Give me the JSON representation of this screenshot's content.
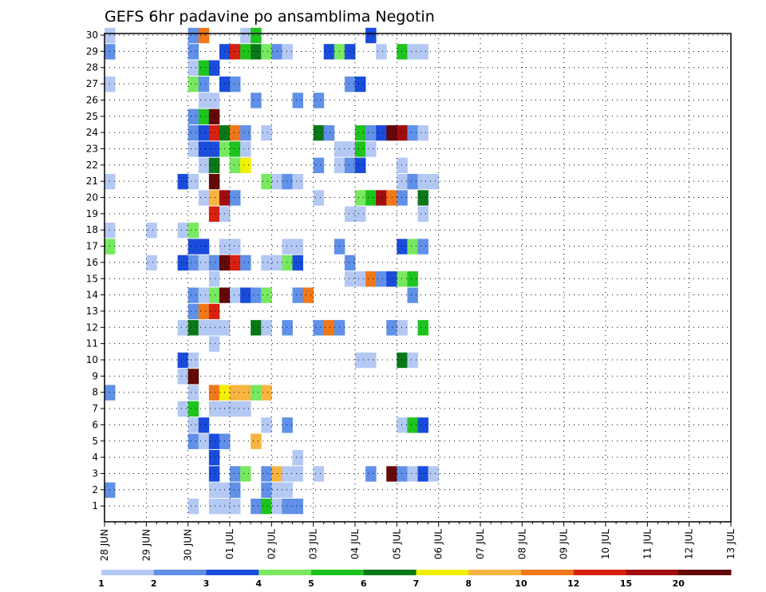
{
  "chart_data": {
    "type": "heatmap",
    "title": "GEFS 6hr padavine po ansamblima Negotin",
    "xlabel": "",
    "ylabel": "",
    "x_tick_labels": [
      "28 JUN",
      "29 JUN",
      "30 JUN",
      "01 JUL",
      "02 JUL",
      "03 JUL",
      "04 JUL",
      "05 JUL",
      "06 JUL",
      "07 JUL",
      "08 JUL",
      "09 JUL",
      "10 JUL",
      "11 JUL",
      "12 JUL",
      "13 JUL"
    ],
    "y_tick_labels": [
      "1",
      "2",
      "3",
      "4",
      "5",
      "6",
      "7",
      "8",
      "9",
      "10",
      "11",
      "12",
      "13",
      "14",
      "15",
      "16",
      "17",
      "18",
      "19",
      "20",
      "21",
      "22",
      "23",
      "24",
      "25",
      "26",
      "27",
      "28",
      "29",
      "30"
    ],
    "xlim": [
      0,
      60
    ],
    "ylim": [
      0,
      30
    ],
    "grid": true,
    "colorbar": {
      "labels": [
        "1",
        "2",
        "3",
        "4",
        "5",
        "6",
        "7",
        "8",
        "10",
        "12",
        "15",
        "20"
      ],
      "colors": [
        "#b4c8f4",
        "#6090e8",
        "#1a4cdc",
        "#78e860",
        "#1ec41e",
        "#0a7818",
        "#f0f000",
        "#f8b440",
        "#f07818",
        "#d82010",
        "#a00c10",
        "#640808"
      ]
    },
    "cells": [
      [
        0,
        30,
        0
      ],
      [
        8,
        30,
        1
      ],
      [
        9,
        30,
        8
      ],
      [
        13,
        30,
        0
      ],
      [
        14,
        30,
        4
      ],
      [
        25,
        30,
        2
      ],
      [
        0,
        29,
        1
      ],
      [
        8,
        29,
        1
      ],
      [
        11,
        29,
        2
      ],
      [
        12,
        29,
        9
      ],
      [
        13,
        29,
        4
      ],
      [
        14,
        29,
        5
      ],
      [
        15,
        29,
        3
      ],
      [
        16,
        29,
        1
      ],
      [
        17,
        29,
        0
      ],
      [
        17,
        29,
        0
      ],
      [
        21,
        29,
        2
      ],
      [
        22,
        29,
        3
      ],
      [
        23,
        29,
        2
      ],
      [
        26,
        29,
        0
      ],
      [
        28,
        29,
        4
      ],
      [
        29,
        29,
        0
      ],
      [
        30,
        29,
        0
      ],
      [
        8,
        28,
        0
      ],
      [
        9,
        28,
        4
      ],
      [
        10,
        28,
        2
      ],
      [
        0,
        27,
        0
      ],
      [
        8,
        27,
        3
      ],
      [
        9,
        27,
        1
      ],
      [
        11,
        27,
        2
      ],
      [
        12,
        27,
        1
      ],
      [
        23,
        27,
        1
      ],
      [
        24,
        27,
        2
      ],
      [
        9,
        26,
        0
      ],
      [
        10,
        26,
        0
      ],
      [
        14,
        26,
        1
      ],
      [
        18,
        26,
        1
      ],
      [
        20,
        26,
        1
      ],
      [
        8,
        25,
        1
      ],
      [
        9,
        25,
        4
      ],
      [
        10,
        25,
        11
      ],
      [
        8,
        24,
        1
      ],
      [
        9,
        24,
        2
      ],
      [
        10,
        24,
        9
      ],
      [
        11,
        24,
        5
      ],
      [
        12,
        24,
        8
      ],
      [
        13,
        24,
        1
      ],
      [
        15,
        24,
        0
      ],
      [
        20,
        24,
        5
      ],
      [
        21,
        24,
        1
      ],
      [
        24,
        24,
        4
      ],
      [
        25,
        24,
        1
      ],
      [
        26,
        24,
        2
      ],
      [
        27,
        24,
        11
      ],
      [
        28,
        24,
        10
      ],
      [
        29,
        24,
        1
      ],
      [
        30,
        24,
        0
      ],
      [
        8,
        23,
        0
      ],
      [
        9,
        23,
        2
      ],
      [
        10,
        23,
        2
      ],
      [
        11,
        23,
        3
      ],
      [
        12,
        23,
        4
      ],
      [
        13,
        23,
        0
      ],
      [
        22,
        23,
        0
      ],
      [
        23,
        23,
        0
      ],
      [
        24,
        23,
        4
      ],
      [
        25,
        23,
        0
      ],
      [
        9,
        22,
        0
      ],
      [
        10,
        22,
        5
      ],
      [
        12,
        22,
        3
      ],
      [
        13,
        22,
        6
      ],
      [
        20,
        22,
        1
      ],
      [
        22,
        22,
        0
      ],
      [
        23,
        22,
        1
      ],
      [
        24,
        22,
        2
      ],
      [
        28,
        22,
        0
      ],
      [
        0,
        21,
        0
      ],
      [
        7,
        21,
        2
      ],
      [
        8,
        21,
        0
      ],
      [
        10,
        21,
        11
      ],
      [
        15,
        21,
        3
      ],
      [
        16,
        21,
        0
      ],
      [
        17,
        21,
        1
      ],
      [
        18,
        21,
        0
      ],
      [
        28,
        21,
        0
      ],
      [
        29,
        21,
        1
      ],
      [
        30,
        21,
        0
      ],
      [
        31,
        21,
        0
      ],
      [
        9,
        20,
        0
      ],
      [
        10,
        20,
        7
      ],
      [
        11,
        20,
        10
      ],
      [
        12,
        20,
        1
      ],
      [
        20,
        20,
        0
      ],
      [
        24,
        20,
        3
      ],
      [
        25,
        20,
        4
      ],
      [
        26,
        20,
        10
      ],
      [
        27,
        20,
        8
      ],
      [
        28,
        20,
        1
      ],
      [
        30,
        20,
        5
      ],
      [
        10,
        19,
        9
      ],
      [
        11,
        19,
        0
      ],
      [
        23,
        19,
        0
      ],
      [
        24,
        19,
        0
      ],
      [
        30,
        19,
        0
      ],
      [
        0,
        18,
        0
      ],
      [
        4,
        18,
        0
      ],
      [
        7,
        18,
        0
      ],
      [
        8,
        18,
        3
      ],
      [
        0,
        17,
        3
      ],
      [
        8,
        17,
        2
      ],
      [
        9,
        17,
        2
      ],
      [
        11,
        17,
        0
      ],
      [
        12,
        17,
        0
      ],
      [
        17,
        17,
        0
      ],
      [
        18,
        17,
        0
      ],
      [
        22,
        17,
        1
      ],
      [
        28,
        17,
        2
      ],
      [
        29,
        17,
        3
      ],
      [
        30,
        17,
        1
      ],
      [
        4,
        16,
        0
      ],
      [
        7,
        16,
        2
      ],
      [
        8,
        16,
        1
      ],
      [
        9,
        16,
        0
      ],
      [
        10,
        16,
        1
      ],
      [
        11,
        16,
        11
      ],
      [
        12,
        16,
        9
      ],
      [
        13,
        16,
        1
      ],
      [
        15,
        16,
        0
      ],
      [
        16,
        16,
        0
      ],
      [
        17,
        16,
        3
      ],
      [
        18,
        16,
        2
      ],
      [
        23,
        16,
        1
      ],
      [
        10,
        15,
        0
      ],
      [
        23,
        15,
        0
      ],
      [
        24,
        15,
        0
      ],
      [
        25,
        15,
        8
      ],
      [
        26,
        15,
        1
      ],
      [
        27,
        15,
        2
      ],
      [
        28,
        15,
        3
      ],
      [
        29,
        15,
        4
      ],
      [
        8,
        14,
        1
      ],
      [
        9,
        14,
        0
      ],
      [
        10,
        14,
        3
      ],
      [
        11,
        14,
        11
      ],
      [
        12,
        14,
        0
      ],
      [
        13,
        14,
        2
      ],
      [
        14,
        14,
        1
      ],
      [
        15,
        14,
        3
      ],
      [
        18,
        14,
        1
      ],
      [
        19,
        14,
        8
      ],
      [
        29,
        14,
        1
      ],
      [
        8,
        13,
        1
      ],
      [
        9,
        13,
        8
      ],
      [
        10,
        13,
        9
      ],
      [
        7,
        12,
        0
      ],
      [
        8,
        12,
        5
      ],
      [
        9,
        12,
        0
      ],
      [
        10,
        12,
        0
      ],
      [
        11,
        12,
        0
      ],
      [
        14,
        12,
        5
      ],
      [
        15,
        12,
        0
      ],
      [
        17,
        12,
        1
      ],
      [
        20,
        12,
        1
      ],
      [
        21,
        12,
        8
      ],
      [
        22,
        12,
        1
      ],
      [
        27,
        12,
        1
      ],
      [
        28,
        12,
        0
      ],
      [
        30,
        12,
        4
      ],
      [
        10,
        11,
        0
      ],
      [
        7,
        10,
        2
      ],
      [
        8,
        10,
        0
      ],
      [
        24,
        10,
        0
      ],
      [
        25,
        10,
        0
      ],
      [
        28,
        10,
        5
      ],
      [
        29,
        10,
        0
      ],
      [
        7,
        9,
        0
      ],
      [
        8,
        9,
        11
      ],
      [
        0,
        8,
        1
      ],
      [
        8,
        8,
        0
      ],
      [
        10,
        8,
        8
      ],
      [
        11,
        8,
        6
      ],
      [
        12,
        8,
        7
      ],
      [
        13,
        8,
        7
      ],
      [
        14,
        8,
        3
      ],
      [
        15,
        8,
        7
      ],
      [
        7,
        7,
        0
      ],
      [
        8,
        7,
        4
      ],
      [
        10,
        7,
        0
      ],
      [
        11,
        7,
        0
      ],
      [
        12,
        7,
        0
      ],
      [
        13,
        7,
        0
      ],
      [
        8,
        6,
        0
      ],
      [
        9,
        6,
        2
      ],
      [
        15,
        6,
        0
      ],
      [
        17,
        6,
        1
      ],
      [
        28,
        6,
        0
      ],
      [
        29,
        6,
        4
      ],
      [
        30,
        6,
        2
      ],
      [
        8,
        5,
        1
      ],
      [
        9,
        5,
        0
      ],
      [
        10,
        5,
        2
      ],
      [
        11,
        5,
        1
      ],
      [
        14,
        5,
        7
      ],
      [
        10,
        4,
        2
      ],
      [
        18,
        4,
        0
      ],
      [
        10,
        3,
        2
      ],
      [
        12,
        3,
        1
      ],
      [
        13,
        3,
        3
      ],
      [
        15,
        3,
        1
      ],
      [
        16,
        3,
        7
      ],
      [
        17,
        3,
        0
      ],
      [
        18,
        3,
        0
      ],
      [
        20,
        3,
        0
      ],
      [
        25,
        3,
        1
      ],
      [
        27,
        3,
        11
      ],
      [
        28,
        3,
        1
      ],
      [
        29,
        3,
        0
      ],
      [
        30,
        3,
        2
      ],
      [
        31,
        3,
        0
      ],
      [
        0,
        2,
        1
      ],
      [
        10,
        2,
        0
      ],
      [
        11,
        2,
        0
      ],
      [
        12,
        2,
        1
      ],
      [
        15,
        2,
        1
      ],
      [
        16,
        2,
        0
      ],
      [
        17,
        2,
        0
      ],
      [
        8,
        1,
        0
      ],
      [
        10,
        1,
        0
      ],
      [
        11,
        1,
        0
      ],
      [
        12,
        1,
        0
      ],
      [
        14,
        1,
        1
      ],
      [
        15,
        1,
        4
      ],
      [
        16,
        1,
        0
      ],
      [
        17,
        1,
        1
      ],
      [
        18,
        1,
        1
      ]
    ]
  }
}
